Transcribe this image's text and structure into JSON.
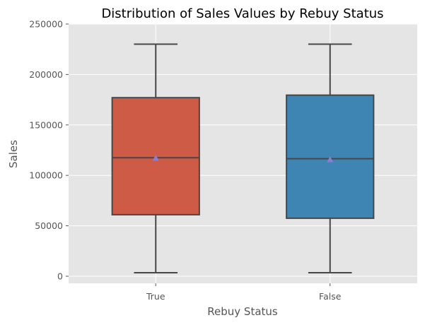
{
  "chart_data": {
    "type": "box",
    "title": "Distribution of Sales Values by Rebuy Status",
    "xlabel": "Rebuy Status",
    "ylabel": "Sales",
    "categories": [
      "True",
      "False"
    ],
    "ylim": [
      -7000,
      250000
    ],
    "yticks": [
      0,
      50000,
      100000,
      150000,
      200000,
      250000
    ],
    "ytick_labels": [
      "0",
      "50000",
      "100000",
      "150000",
      "200000",
      "250000"
    ],
    "grid": true,
    "legend": "none",
    "background_color": "#e5e5e5",
    "mean_marker_color": "#8b7ed0",
    "boxes": [
      {
        "category": "True",
        "whisker_low": 3500,
        "q1": 61000,
        "median": 117500,
        "q3": 177000,
        "whisker_high": 230000,
        "mean": 117000,
        "color": "#cd5b46"
      },
      {
        "category": "False",
        "whisker_low": 3500,
        "q1": 57500,
        "median": 116500,
        "q3": 179500,
        "whisker_high": 230000,
        "mean": 115500,
        "color": "#3f85b3"
      }
    ]
  }
}
